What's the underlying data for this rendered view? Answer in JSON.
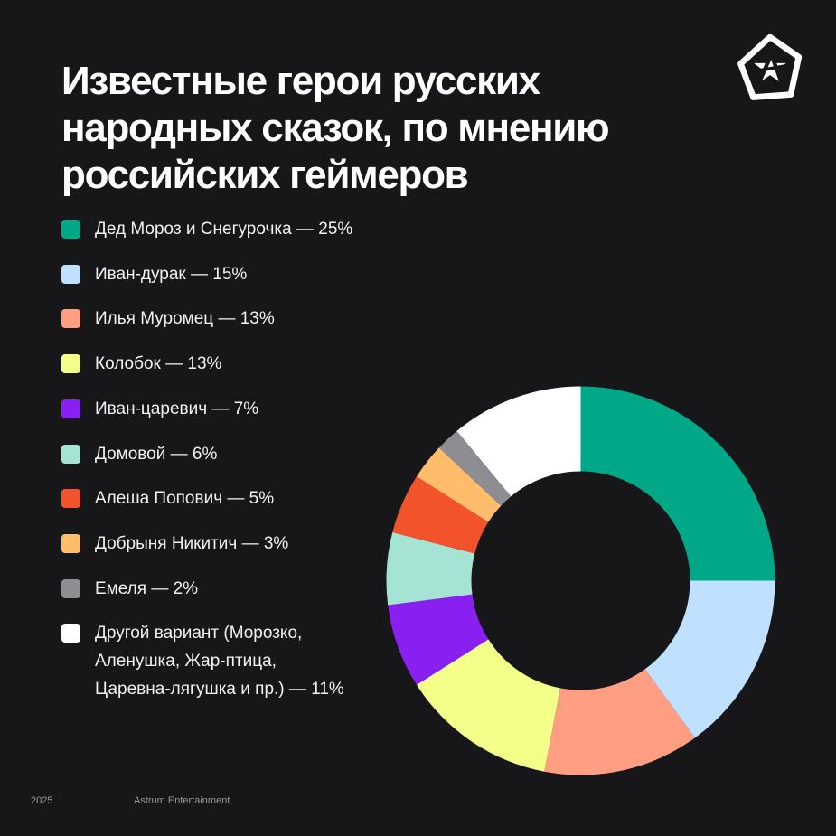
{
  "title": {
    "line1": "Известные герои русских",
    "line2": "народных сказок, по мнению",
    "line3": "российских геймеров"
  },
  "logo": {
    "icon": "astrum-star-logo-icon",
    "color": "#ffffff"
  },
  "footer": {
    "year": "2025",
    "brand": "Astrum Entertainment"
  },
  "legend": [
    {
      "lines": [
        "Дед Мороз и Снегурочка — 25%"
      ]
    },
    {
      "lines": [
        "Иван-дурак — 15%"
      ]
    },
    {
      "lines": [
        "Илья Муромец — 13%"
      ]
    },
    {
      "lines": [
        "Колобок — 13%"
      ]
    },
    {
      "lines": [
        "Иван-царевич — 7%"
      ]
    },
    {
      "lines": [
        "Домовой — 6%"
      ]
    },
    {
      "lines": [
        "Алеша Попович — 5%"
      ]
    },
    {
      "lines": [
        "Добрыня Никитич — 3%"
      ]
    },
    {
      "lines": [
        "Емеля — 2%"
      ]
    },
    {
      "lines": [
        "Другой вариант (Морозко,",
        "Аленушка, Жар-птица,",
        "Царевна-лягушка и пр.) — 11%"
      ]
    }
  ],
  "chart_data": {
    "type": "pie",
    "donut": true,
    "title": "Известные герои русских народных сказок, по мнению российских геймеров",
    "labels": [
      "Дед Мороз и Снегурочка",
      "Иван-дурак",
      "Илья Муромец",
      "Колобок",
      "Иван-царевич",
      "Домовой",
      "Алеша Попович",
      "Добрыня Никитич",
      "Емеля",
      "Другой вариант (Морозко, Аленушка, Жар-птица, Царевна-лягушка и пр.)"
    ],
    "values": [
      25,
      15,
      13,
      13,
      7,
      6,
      5,
      3,
      2,
      11
    ],
    "unit": "%",
    "colors": [
      "#00a887",
      "#bfe0ff",
      "#ff9e83",
      "#f4ff8a",
      "#8a1ff2",
      "#a5e3d4",
      "#f3532b",
      "#ffbd6b",
      "#8d8d92",
      "#ffffff"
    ],
    "legend_position": "left",
    "start": "top",
    "direction": "clockwise"
  }
}
